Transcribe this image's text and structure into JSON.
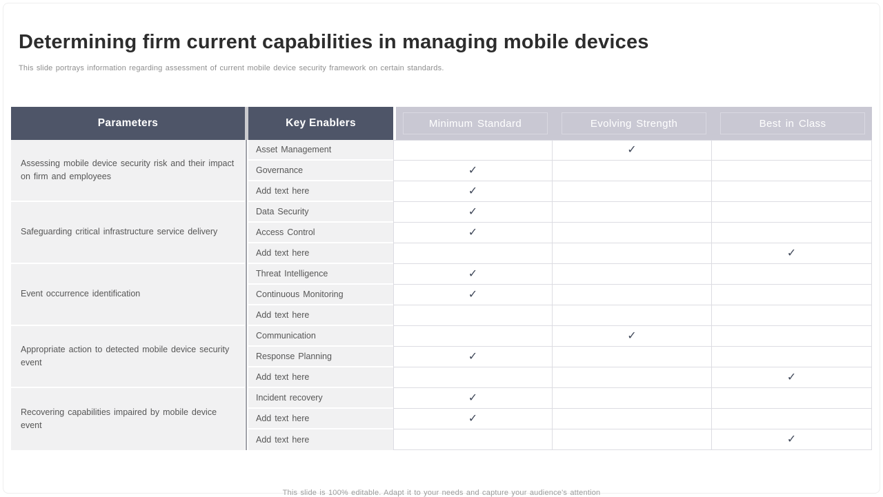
{
  "slide": {
    "title": "Determining firm current capabilities in managing mobile devices",
    "subtitle": "This slide portrays information regarding assessment of current mobile device security framework on certain standards.",
    "footer": "This slide is 100% editable. Adapt it to your needs and capture your audience's attention"
  },
  "colors": {
    "header_dark": "#4e5568",
    "header_light": "#c9c8d3",
    "row_bg": "#f1f1f2",
    "grid_line": "#dcdce2",
    "check": "#3e4657"
  },
  "table": {
    "check_glyph": "✓",
    "columns": {
      "parameters": "Parameters",
      "key_enablers": "Key Enablers",
      "ratings": [
        "Minimum Standard",
        "Evolving Strength",
        "Best in Class"
      ]
    },
    "groups": [
      {
        "parameter": "Assessing mobile device security risk and their impact on firm and employees",
        "enablers": [
          {
            "label": "Asset Management",
            "checks": [
              false,
              true,
              false
            ]
          },
          {
            "label": "Governance",
            "checks": [
              true,
              false,
              false
            ]
          },
          {
            "label": "Add text here",
            "checks": [
              true,
              false,
              false
            ]
          }
        ]
      },
      {
        "parameter": "Safeguarding critical infrastructure service delivery",
        "enablers": [
          {
            "label": "Data Security",
            "checks": [
              true,
              false,
              false
            ]
          },
          {
            "label": "Access Control",
            "checks": [
              true,
              false,
              false
            ]
          },
          {
            "label": "Add text here",
            "checks": [
              false,
              false,
              true
            ]
          }
        ]
      },
      {
        "parameter": "Event occurrence identification",
        "enablers": [
          {
            "label": "Threat Intelligence",
            "checks": [
              true,
              false,
              false
            ]
          },
          {
            "label": "Continuous Monitoring",
            "checks": [
              true,
              false,
              false
            ]
          },
          {
            "label": "Add text here",
            "checks": [
              false,
              false,
              false
            ]
          }
        ]
      },
      {
        "parameter": "Appropriate action to detected mobile device security event",
        "enablers": [
          {
            "label": "Communication",
            "checks": [
              false,
              true,
              false
            ]
          },
          {
            "label": "Response Planning",
            "checks": [
              true,
              false,
              false
            ]
          },
          {
            "label": "Add text here",
            "checks": [
              false,
              false,
              true
            ]
          }
        ]
      },
      {
        "parameter": "Recovering capabilities impaired by mobile device event",
        "enablers": [
          {
            "label": "Incident recovery",
            "checks": [
              true,
              false,
              false
            ]
          },
          {
            "label": "Add text here",
            "checks": [
              true,
              false,
              false
            ]
          },
          {
            "label": "Add text here",
            "checks": [
              false,
              false,
              true
            ]
          }
        ]
      }
    ]
  }
}
